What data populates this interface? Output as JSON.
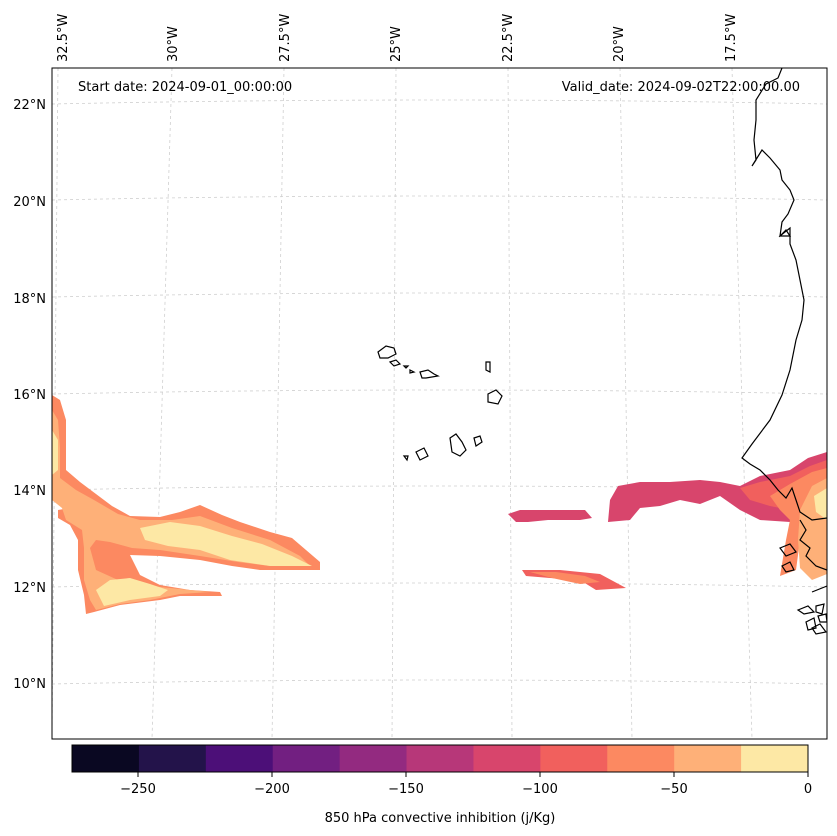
{
  "map": {
    "header_left": "Start date: 2024-09-01_00:00:00",
    "header_right": "Valid_date: 2024-09-02T22:00:00.00",
    "lon_labels": [
      "32.5°W",
      "30°W",
      "27.5°W",
      "25°W",
      "22.5°W",
      "20°W",
      "17.5°W"
    ],
    "lat_labels": [
      "22°N",
      "20°N",
      "18°N",
      "16°N",
      "14°N",
      "12°N",
      "10°N"
    ]
  },
  "colorbar": {
    "label": "850 hPa convective inhibition (j/Kg)",
    "ticks": [
      "−250",
      "−200",
      "−150",
      "−100",
      "−50",
      "0"
    ],
    "colors": [
      "#0a0822",
      "#23134a",
      "#4c0f78",
      "#721f81",
      "#932a80",
      "#b73779",
      "#d8456c",
      "#f1605d",
      "#fc8961",
      "#feb078",
      "#fde8a5"
    ]
  },
  "chart_data": {
    "type": "filled-contour-map",
    "variable": "850 hPa convective inhibition (j/Kg)",
    "levels": [
      -275,
      -250,
      -225,
      -200,
      -175,
      -150,
      -125,
      -100,
      -75,
      -50,
      -25,
      0
    ],
    "lon_range": [
      -33,
      -15.5
    ],
    "lat_range": [
      9,
      23
    ]
  }
}
